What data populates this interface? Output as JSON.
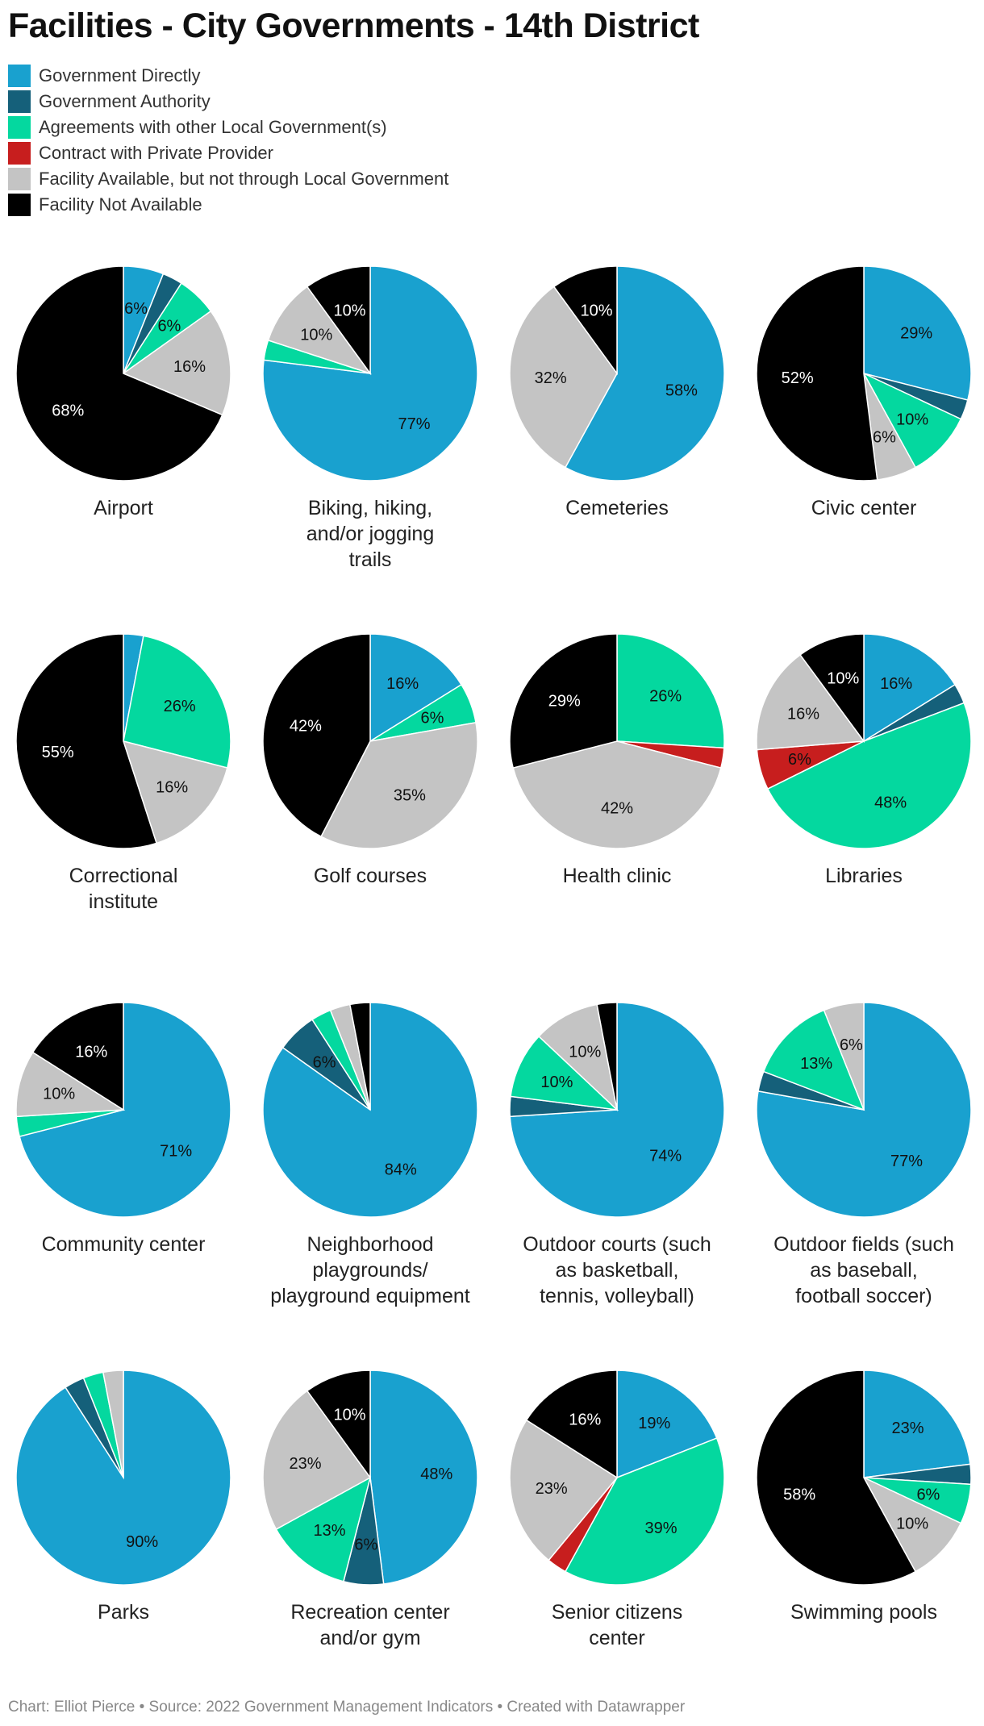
{
  "header": {
    "title": "Facilities - City Governments - 14th District"
  },
  "footer": {
    "credit": "Chart: Elliot Pierce • Source: 2022 Government Management Indicators • Created with Datawrapper"
  },
  "colors": {
    "Government Directly": "#19a1cf",
    "Government Authority": "#15607a",
    "Agreements with other Local Government(s)": "#04d89f",
    "Contract with Private Provider": "#c71e1e",
    "Facility Available, but not through Local Government": "#c4c4c4",
    "Facility Not Available": "#000000"
  },
  "chart_data": {
    "type": "pie",
    "legend_position": "top-left",
    "categories": [
      "Government Directly",
      "Government Authority",
      "Agreements with other Local Government(s)",
      "Contract with Private Provider",
      "Facility Available, but not through Local Government",
      "Facility Not Available"
    ],
    "pies": [
      {
        "name": "Airport",
        "values": [
          6,
          3,
          6,
          0,
          16,
          68
        ]
      },
      {
        "name": "Biking, hiking, and/or jogging trails",
        "values": [
          77,
          0,
          3,
          0,
          10,
          10
        ]
      },
      {
        "name": "Cemeteries",
        "values": [
          58,
          0,
          0,
          0,
          32,
          10
        ]
      },
      {
        "name": "Civic center",
        "values": [
          29,
          3,
          10,
          0,
          6,
          52
        ]
      },
      {
        "name": "Correctional institute",
        "values": [
          3,
          0,
          26,
          0,
          16,
          55
        ]
      },
      {
        "name": "Golf courses",
        "values": [
          16,
          0,
          6,
          0,
          35,
          42
        ]
      },
      {
        "name": "Health clinic",
        "values": [
          0,
          0,
          26,
          3,
          42,
          29
        ]
      },
      {
        "name": "Libraries",
        "values": [
          16,
          3,
          48,
          6,
          16,
          10
        ]
      },
      {
        "name": "Community center",
        "values": [
          71,
          0,
          3,
          0,
          10,
          16
        ]
      },
      {
        "name": "Neighborhood playgrounds/ playground equipment",
        "values": [
          84,
          6,
          3,
          0,
          3,
          3
        ]
      },
      {
        "name": "Outdoor courts (such as basketball, tennis, volleyball)",
        "values": [
          74,
          3,
          10,
          0,
          10,
          3
        ]
      },
      {
        "name": "Outdoor fields (such as baseball, football soccer)",
        "values": [
          77,
          3,
          13,
          0,
          6,
          0
        ]
      },
      {
        "name": "Parks",
        "values": [
          90,
          3,
          3,
          0,
          3,
          0
        ]
      },
      {
        "name": "Recreation center and/or gym",
        "values": [
          48,
          6,
          13,
          0,
          23,
          10
        ]
      },
      {
        "name": "Senior citizens center",
        "values": [
          19,
          0,
          39,
          3,
          23,
          16
        ]
      },
      {
        "name": "Swimming pools",
        "values": [
          23,
          3,
          6,
          0,
          10,
          58
        ]
      }
    ]
  }
}
